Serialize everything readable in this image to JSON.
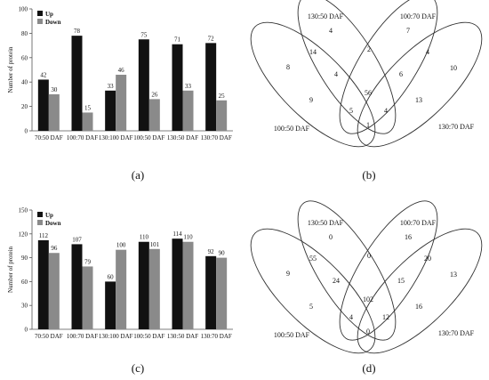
{
  "panels": {
    "a": "(a)",
    "b": "(b)",
    "c": "(c)",
    "d": "(d)"
  },
  "colors": {
    "up": "#111111",
    "down": "#8a8a8a",
    "ellipse": "#333333"
  },
  "chart_data": [
    {
      "id": "a",
      "type": "bar",
      "categories": [
        "70:50 DAF",
        "100:70 DAF",
        "130:100 DAF",
        "100:50 DAF",
        "130:50 DAF",
        "130:70 DAF"
      ],
      "series": [
        {
          "name": "Up",
          "values": [
            42,
            78,
            33,
            75,
            71,
            72
          ]
        },
        {
          "name": "Down",
          "values": [
            30,
            15,
            46,
            26,
            33,
            25
          ]
        }
      ],
      "ylabel": "Number of protein",
      "ylim": [
        0,
        100
      ],
      "yticks": [
        0,
        20,
        40,
        60,
        80,
        100
      ],
      "legend": "top-left",
      "grid": false
    },
    {
      "id": "c",
      "type": "bar",
      "categories": [
        "70:50 DAF",
        "100:70 DAF",
        "130:100 DAF",
        "100:50 DAF",
        "130:50 DAF",
        "130:70 DAF"
      ],
      "series": [
        {
          "name": "Up",
          "values": [
            112,
            107,
            60,
            110,
            114,
            92
          ]
        },
        {
          "name": "Down",
          "values": [
            96,
            79,
            100,
            101,
            110,
            90
          ]
        }
      ],
      "ylabel": "Number of protein",
      "ylim": [
        0,
        150
      ],
      "yticks": [
        0,
        30,
        60,
        90,
        120,
        150
      ],
      "legend": "top-left",
      "grid": false
    }
  ],
  "venns": [
    {
      "id": "b",
      "set_labels": [
        "130:50 DAF",
        "100:70 DAF",
        "100:50 DAF",
        "130:70 DAF"
      ],
      "regions": {
        "only_130_50": 4,
        "only_100_70": 7,
        "only_100_50": 8,
        "only_130_70": 10,
        "s130_50__100_50": 14,
        "s130_50__100_70": 2,
        "s100_70__130_70": 4,
        "s130_50__100_70__100_50": 4,
        "s130_50__100_70__130_70": 6,
        "all_four": 56,
        "s100_50__130_70": 1,
        "s100_50__130_70__130_50": 9,
        "s100_50__130_70__100_70": 13,
        "s130_50__130_70": 5,
        "s100_70__100_50": 4
      }
    },
    {
      "id": "d",
      "set_labels": [
        "130:50 DAF",
        "100:70 DAF",
        "100:50 DAF",
        "130:70 DAF"
      ],
      "regions": {
        "only_130_50": 0,
        "only_100_70": 16,
        "only_100_50": 9,
        "only_130_70": 13,
        "s130_50__100_50": 55,
        "s130_50__100_70": 0,
        "s100_70__130_70": 20,
        "s130_50__100_70__100_50": 24,
        "s130_50__100_70__130_70": 15,
        "all_four": 102,
        "s100_50__130_70": 0,
        "s100_50__130_70__130_50": 5,
        "s100_50__130_70__100_70": 16,
        "s130_50__130_70": 4,
        "s100_70__100_50": 12
      }
    }
  ]
}
